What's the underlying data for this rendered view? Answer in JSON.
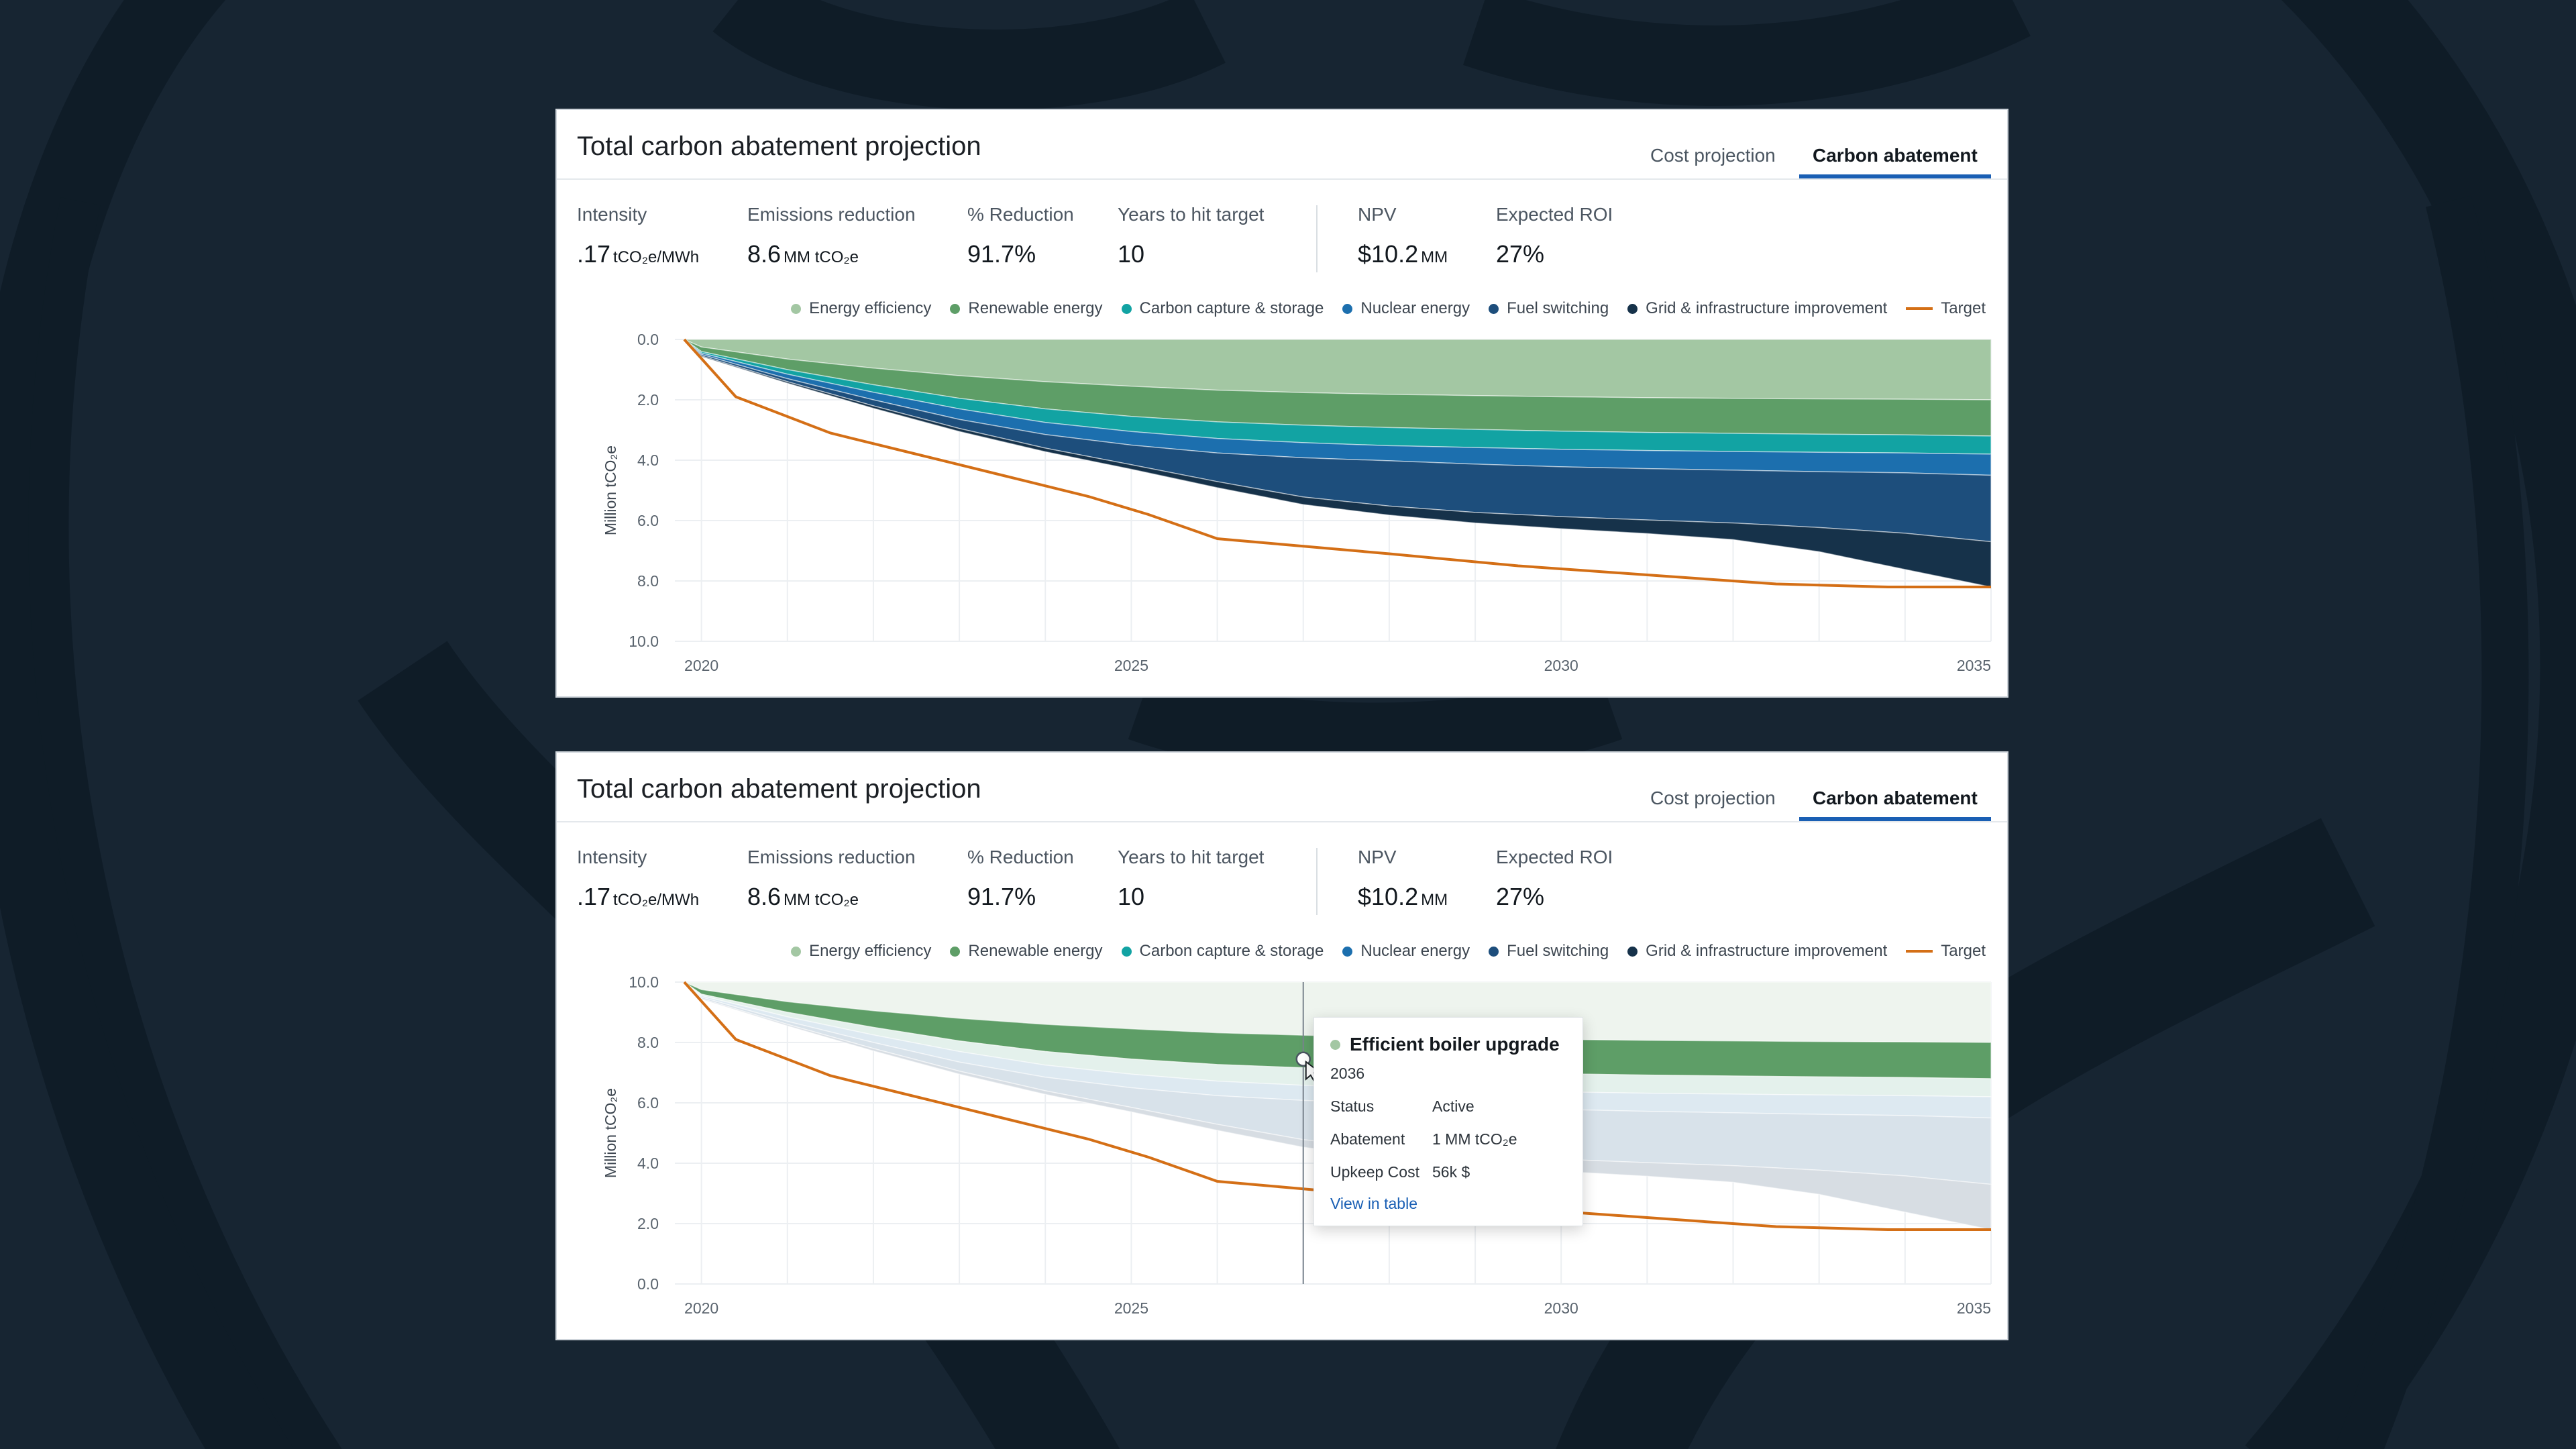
{
  "panels": [
    {
      "id": "p1",
      "title": "Total carbon abatement projection",
      "tabs": [
        {
          "label": "Cost projection",
          "active": false
        },
        {
          "label": "Carbon abatement",
          "active": true
        }
      ],
      "metrics": [
        {
          "label": "Intensity",
          "value": ".17",
          "unit": "tCO₂e/MWh"
        },
        {
          "label": "Emissions reduction",
          "value": "8.6",
          "unit": "MM tCO₂e"
        },
        {
          "label": "% Reduction",
          "value": "91.7%",
          "unit": ""
        },
        {
          "label": "Years to hit target",
          "value": "10",
          "unit": ""
        },
        {
          "label": "NPV",
          "value": "$10.2",
          "unit": "MM"
        },
        {
          "label": "Expected ROI",
          "value": "27%",
          "unit": ""
        }
      ]
    },
    {
      "id": "p2",
      "title": "Total carbon abatement projection",
      "tabs": [
        {
          "label": "Cost projection",
          "active": false
        },
        {
          "label": "Carbon abatement",
          "active": true
        }
      ],
      "metrics": [
        {
          "label": "Intensity",
          "value": ".17",
          "unit": "tCO₂e/MWh"
        },
        {
          "label": "Emissions reduction",
          "value": "8.6",
          "unit": "MM tCO₂e"
        },
        {
          "label": "% Reduction",
          "value": "91.7%",
          "unit": ""
        },
        {
          "label": "Years to hit target",
          "value": "10",
          "unit": ""
        },
        {
          "label": "NPV",
          "value": "$10.2",
          "unit": "MM"
        },
        {
          "label": "Expected ROI",
          "value": "27%",
          "unit": ""
        }
      ]
    }
  ],
  "colors": {
    "energy_efficiency": "#a3c7a3",
    "renewable_energy": "#5e9e67",
    "carbon_capture": "#12a3a3",
    "nuclear_energy": "#1c6fae",
    "fuel_switching": "#1d4e7c",
    "grid_infrastructure": "#16324a",
    "target": "#d46f16",
    "background": "#172532"
  },
  "tooltip": {
    "title": "Efficient boiler upgrade",
    "year": "2036",
    "rows": [
      {
        "key": "Status",
        "value": "Active"
      },
      {
        "key": "Abatement",
        "value": "1 MM tCO₂e"
      },
      {
        "key": "Upkeep Cost",
        "value": "56k $"
      }
    ],
    "link": "View in table"
  },
  "chart_data": [
    {
      "type": "area",
      "title": "",
      "ylabel": "Million tCO₂e",
      "xlabel": "",
      "y_axis": "inverted",
      "ylim": [
        0,
        10
      ],
      "y_ticks": [
        "0.0",
        "2.0",
        "4.0",
        "6.0",
        "8.0",
        "10.0"
      ],
      "x_ticks": [
        "2020",
        "2025",
        "2030",
        "2035"
      ],
      "x": [
        2019.8,
        2020,
        2021,
        2022,
        2023,
        2024,
        2025,
        2026,
        2027,
        2028,
        2029,
        2030,
        2031,
        2032,
        2033,
        2034,
        2035
      ],
      "series": [
        {
          "name": "Energy efficiency",
          "values": [
            0,
            0.25,
            0.65,
            0.95,
            1.2,
            1.4,
            1.55,
            1.68,
            1.76,
            1.82,
            1.86,
            1.9,
            1.93,
            1.95,
            1.97,
            1.98,
            2.0
          ]
        },
        {
          "name": "Renewable energy",
          "values": [
            0,
            0.15,
            0.35,
            0.55,
            0.75,
            0.9,
            1.0,
            1.05,
            1.08,
            1.1,
            1.12,
            1.14,
            1.15,
            1.16,
            1.17,
            1.18,
            1.2
          ]
        },
        {
          "name": "Carbon capture & storage",
          "values": [
            0,
            0.05,
            0.15,
            0.25,
            0.35,
            0.45,
            0.5,
            0.55,
            0.58,
            0.6,
            0.6,
            0.6,
            0.6,
            0.6,
            0.6,
            0.6,
            0.6
          ]
        },
        {
          "name": "Nuclear energy",
          "values": [
            0,
            0.05,
            0.15,
            0.25,
            0.35,
            0.4,
            0.45,
            0.48,
            0.5,
            0.5,
            0.55,
            0.58,
            0.6,
            0.62,
            0.64,
            0.66,
            0.7
          ]
        },
        {
          "name": "Fuel switching",
          "values": [
            0,
            0.05,
            0.1,
            0.2,
            0.3,
            0.45,
            0.65,
            0.95,
            1.3,
            1.5,
            1.6,
            1.65,
            1.7,
            1.75,
            1.85,
            2.0,
            2.2
          ]
        },
        {
          "name": "Grid & infrastructure improvement",
          "values": [
            0,
            0.02,
            0.05,
            0.08,
            0.1,
            0.12,
            0.15,
            0.2,
            0.25,
            0.3,
            0.35,
            0.4,
            0.45,
            0.55,
            0.8,
            1.2,
            1.5
          ]
        }
      ],
      "target": {
        "name": "Target",
        "x": [
          2019.8,
          2020.4,
          2021.5,
          2022.5,
          2023.5,
          2024.5,
          2025.2,
          2026,
          2026.8,
          2028,
          2029.5,
          2031,
          2032.5,
          2033.8,
          2035
        ],
        "values": [
          0,
          1.9,
          3.1,
          3.8,
          4.5,
          5.2,
          5.8,
          6.6,
          6.8,
          7.1,
          7.5,
          7.8,
          8.1,
          8.2,
          8.2
        ]
      }
    },
    {
      "type": "area",
      "title": "",
      "ylabel": "Million tCO₂e",
      "xlabel": "",
      "ylim": [
        0,
        10
      ],
      "y_ticks": [
        "0.0",
        "2.0",
        "4.0",
        "6.0",
        "8.0",
        "10.0"
      ],
      "x_ticks": [
        "2020",
        "2025",
        "2030",
        "2035"
      ],
      "x": [
        2019.8,
        2020,
        2021,
        2022,
        2023,
        2024,
        2025,
        2026,
        2027,
        2028,
        2029,
        2030,
        2031,
        2032,
        2033,
        2034,
        2035
      ],
      "top_value": 10,
      "series": [
        {
          "name": "Energy efficiency",
          "values": [
            0,
            0.25,
            0.65,
            0.95,
            1.2,
            1.4,
            1.55,
            1.68,
            1.76,
            1.82,
            1.86,
            1.9,
            1.93,
            1.95,
            1.97,
            1.98,
            2.0
          ]
        },
        {
          "name": "Renewable energy",
          "values": [
            0,
            0.15,
            0.35,
            0.55,
            0.75,
            0.9,
            1.0,
            1.05,
            1.08,
            1.1,
            1.12,
            1.14,
            1.15,
            1.16,
            1.17,
            1.18,
            1.2
          ]
        },
        {
          "name": "Carbon capture & storage",
          "values": [
            0,
            0.05,
            0.15,
            0.25,
            0.35,
            0.45,
            0.5,
            0.55,
            0.58,
            0.6,
            0.6,
            0.6,
            0.6,
            0.6,
            0.6,
            0.6,
            0.6
          ]
        },
        {
          "name": "Nuclear energy",
          "values": [
            0,
            0.05,
            0.15,
            0.25,
            0.35,
            0.4,
            0.45,
            0.48,
            0.5,
            0.5,
            0.55,
            0.58,
            0.6,
            0.62,
            0.64,
            0.66,
            0.7
          ]
        },
        {
          "name": "Fuel switching",
          "values": [
            0,
            0.05,
            0.1,
            0.2,
            0.3,
            0.45,
            0.65,
            0.95,
            1.3,
            1.5,
            1.6,
            1.65,
            1.7,
            1.75,
            1.85,
            2.0,
            2.2
          ]
        },
        {
          "name": "Grid & infrastructure improvement",
          "values": [
            0,
            0.02,
            0.05,
            0.08,
            0.1,
            0.12,
            0.15,
            0.2,
            0.25,
            0.3,
            0.35,
            0.4,
            0.45,
            0.55,
            0.8,
            1.2,
            1.5
          ]
        }
      ],
      "highlighted_series": "Renewable energy",
      "hover_x": 2027,
      "target": {
        "name": "Target",
        "x": [
          2019.8,
          2020.4,
          2021.5,
          2022.5,
          2023.5,
          2024.5,
          2025.2,
          2026,
          2026.8,
          2028,
          2029.5,
          2031,
          2032.5,
          2033.8,
          2035
        ],
        "values": [
          10,
          8.1,
          6.9,
          6.2,
          5.5,
          4.8,
          4.2,
          3.4,
          3.2,
          2.9,
          2.5,
          2.2,
          1.9,
          1.8,
          1.8
        ]
      }
    }
  ]
}
